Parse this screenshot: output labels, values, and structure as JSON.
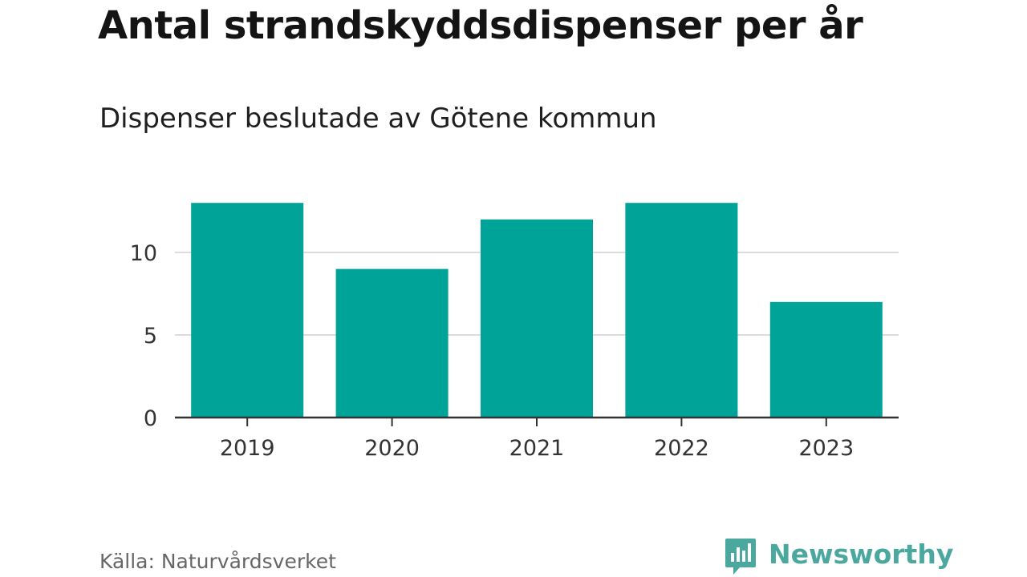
{
  "header": {
    "title": "Antal strandskyddsdispenser per år",
    "subtitle": "Dispenser beslutade av Götene kommun"
  },
  "footer": {
    "source": "Källa: Naturvårdsverket",
    "brand": "Newsworthy"
  },
  "colors": {
    "bar": "#00A398",
    "grid": "#dcdcdc",
    "axis": "#333333",
    "brand": "#4aa89f"
  },
  "chart_data": {
    "type": "bar",
    "title": "Antal strandskyddsdispenser per år",
    "subtitle": "Dispenser beslutade av Götene kommun",
    "categories": [
      "2019",
      "2020",
      "2021",
      "2022",
      "2023"
    ],
    "values": [
      13,
      9,
      12,
      13,
      7
    ],
    "xlabel": "",
    "ylabel": "",
    "ylim": [
      0,
      14
    ],
    "yticks": [
      0,
      5,
      10
    ],
    "grid": true
  }
}
